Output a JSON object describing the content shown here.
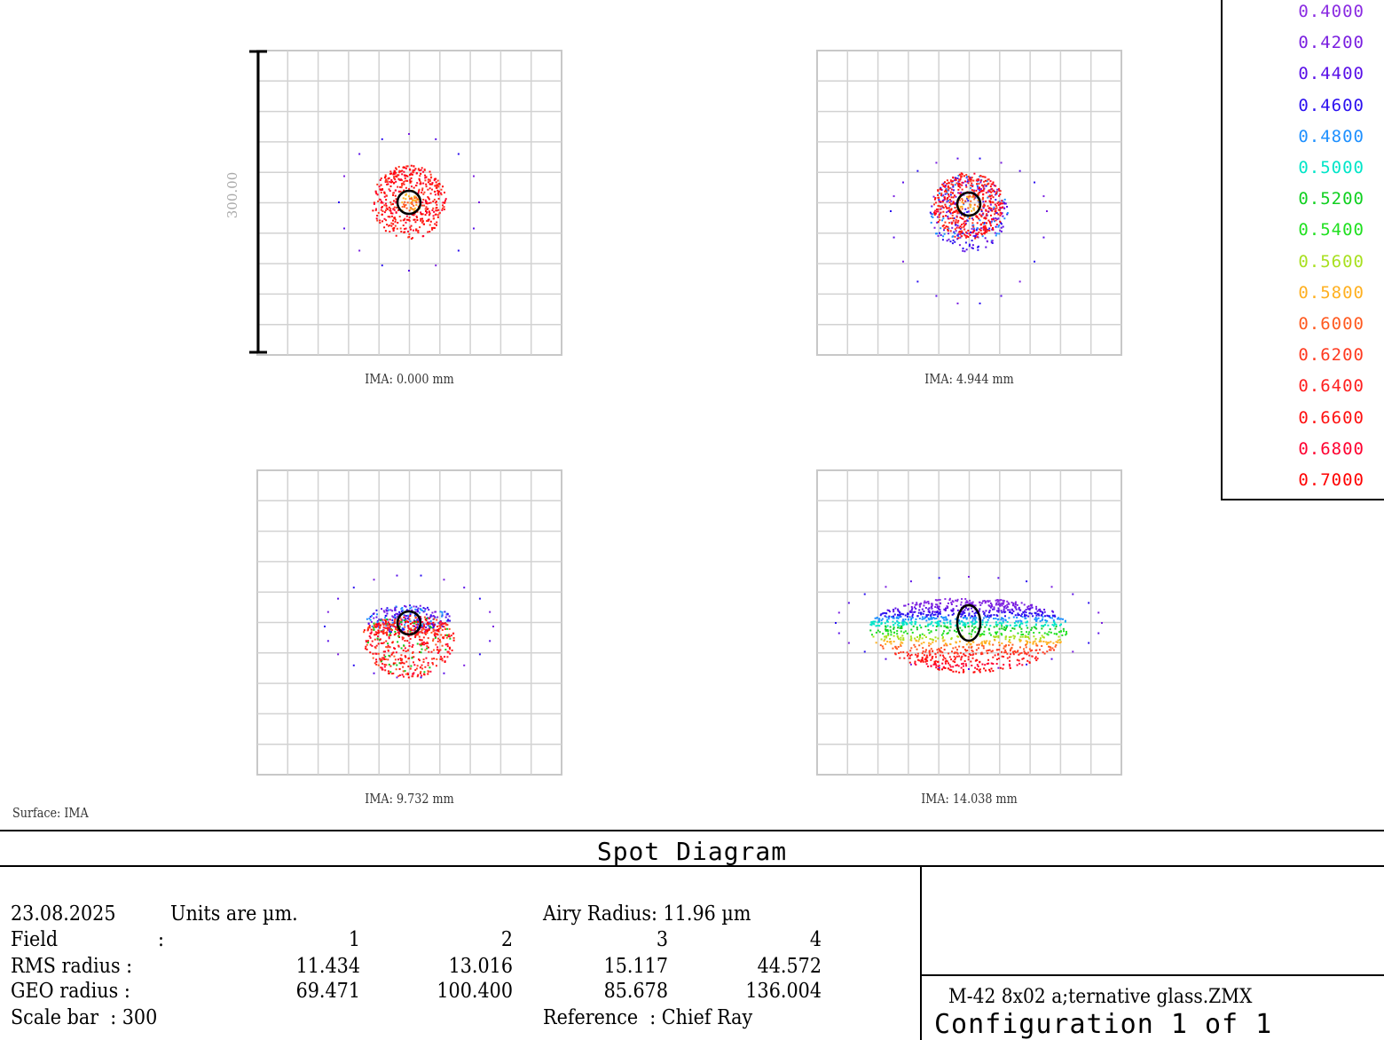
{
  "chart_data": {
    "type": "scatter",
    "title": "Spot Diagram",
    "surface_label": "Surface: IMA",
    "scale_bar_label": "300.00",
    "grid": true,
    "legend_placement": "top-right",
    "fields": [
      {
        "label": "IMA: 0.000 mm"
      },
      {
        "label": "IMA: 4.944 mm"
      },
      {
        "label": "IMA: 9.732 mm"
      },
      {
        "label": "IMA: 14.038 mm"
      }
    ],
    "wavelengths": [
      {
        "value": "0.4000",
        "color": "#8a2be2"
      },
      {
        "value": "0.4200",
        "color": "#7a1fe0"
      },
      {
        "value": "0.4400",
        "color": "#5a10e8"
      },
      {
        "value": "0.4600",
        "color": "#2b10f0"
      },
      {
        "value": "0.4800",
        "color": "#1e90ff"
      },
      {
        "value": "0.5000",
        "color": "#00e5c8"
      },
      {
        "value": "0.5200",
        "color": "#10d020"
      },
      {
        "value": "0.5400",
        "color": "#20e020"
      },
      {
        "value": "0.5600",
        "color": "#a8e020"
      },
      {
        "value": "0.5800",
        "color": "#ffb020"
      },
      {
        "value": "0.6000",
        "color": "#ff5a20"
      },
      {
        "value": "0.6200",
        "color": "#ff3a20"
      },
      {
        "value": "0.6400",
        "color": "#ff2020"
      },
      {
        "value": "0.6600",
        "color": "#ff1010"
      },
      {
        "value": "0.6800",
        "color": "#ff0030"
      },
      {
        "value": "0.7000",
        "color": "#ff0000"
      }
    ]
  },
  "info": {
    "date": "23.08.2025",
    "units": "Units are µm.",
    "airy_radius": "Airy Radius: 11.96 µm",
    "field_label": "Field",
    "rms_label": "RMS radius :",
    "geo_label": "GEO radius :",
    "colon": ":",
    "field_numbers": [
      "1",
      "2",
      "3",
      "4"
    ],
    "rms_values": [
      "11.434",
      "13.016",
      "15.117",
      "44.572"
    ],
    "geo_values": [
      "69.471",
      "100.400",
      "85.678",
      "136.004"
    ],
    "scale_bar": "Scale bar  : 300",
    "reference": "Reference  : Chief Ray",
    "file_name": "M-42 8x02 a;ternative glass.ZMX",
    "configuration": "Configuration 1 of 1"
  }
}
